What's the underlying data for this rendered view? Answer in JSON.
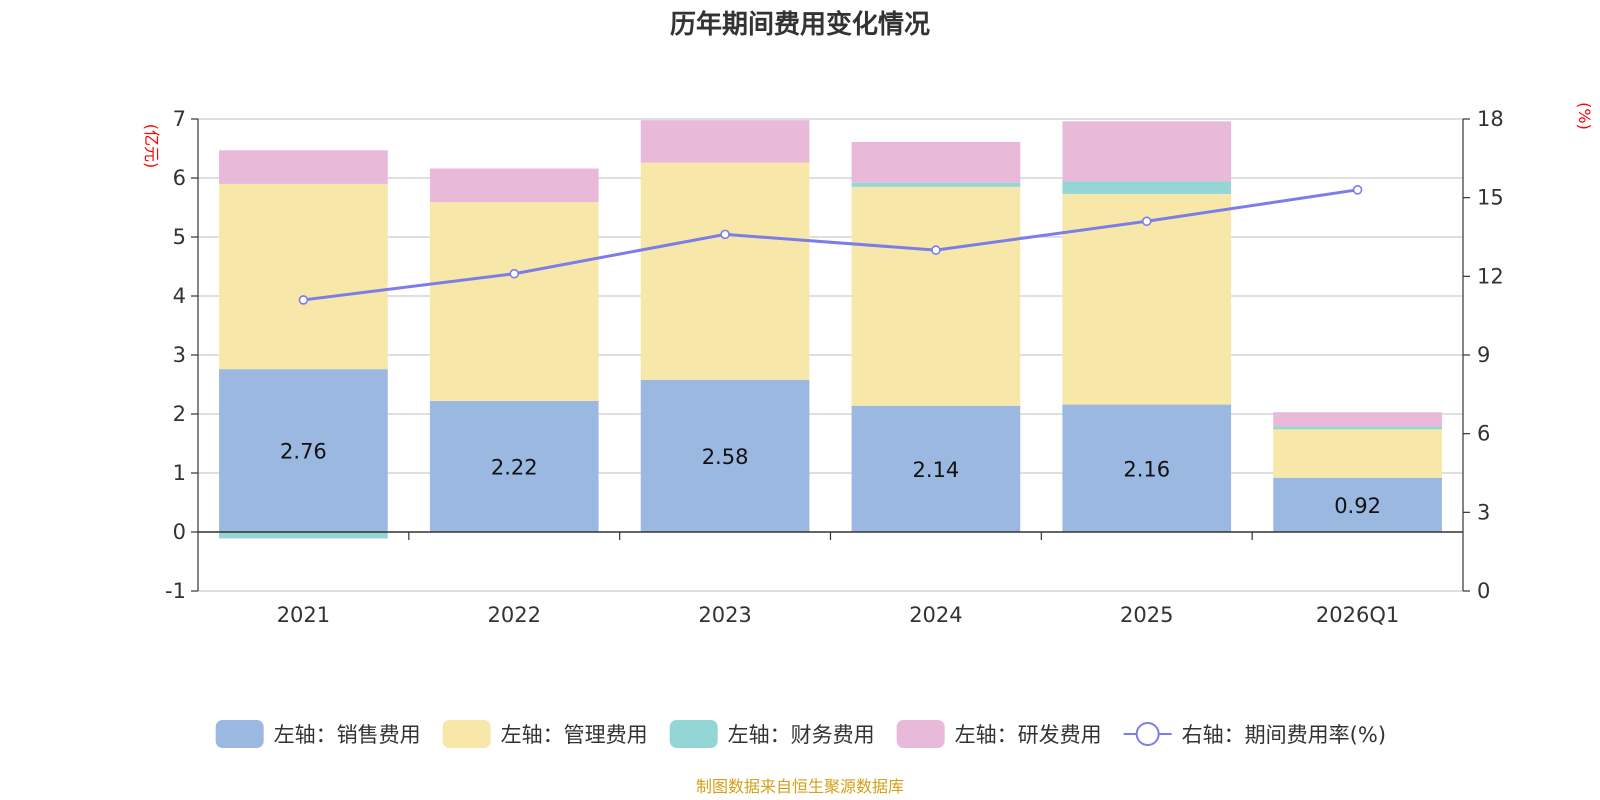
{
  "chart_data": {
    "type": "bar",
    "title": "历年期间费用变化情况",
    "categories": [
      "2021",
      "2022",
      "2023",
      "2024",
      "2025",
      "2026Q1"
    ],
    "left_axis": {
      "unit": "(亿元)",
      "ylim": [
        -1,
        7
      ],
      "ticks": [
        -1,
        0,
        1,
        2,
        3,
        4,
        5,
        6,
        7
      ]
    },
    "right_axis": {
      "unit": "(%)",
      "ylim": [
        0,
        18
      ],
      "ticks": [
        0,
        3,
        6,
        9,
        12,
        15,
        18
      ]
    },
    "series": [
      {
        "name": "左轴：销售费用",
        "type": "bar",
        "axis": "left",
        "color": "#9bb8e1",
        "values": [
          2.76,
          2.22,
          2.58,
          2.14,
          2.16,
          0.92
        ],
        "labels": [
          "2.76",
          "2.22",
          "2.58",
          "2.14",
          "2.16",
          "0.92"
        ]
      },
      {
        "name": "左轴：管理费用",
        "type": "bar",
        "axis": "left",
        "color": "#f7e7a8",
        "values": [
          3.14,
          3.37,
          3.68,
          3.71,
          3.57,
          0.82
        ]
      },
      {
        "name": "左轴：财务费用",
        "type": "bar",
        "axis": "left",
        "color": "#94d5d5",
        "values": [
          -0.11,
          0.0,
          0.0,
          0.07,
          0.21,
          0.05
        ]
      },
      {
        "name": "左轴：研发费用",
        "type": "bar",
        "axis": "left",
        "color": "#e8b9d9",
        "values": [
          0.57,
          0.57,
          0.72,
          0.69,
          1.02,
          0.24
        ]
      },
      {
        "name": "右轴：期间费用率(%)",
        "type": "line",
        "axis": "right",
        "color": "#7b7de8",
        "values": [
          11.1,
          12.1,
          13.6,
          13.0,
          14.1,
          15.3
        ]
      }
    ],
    "legend_position": "bottom",
    "grid": true
  },
  "footer": {
    "source": "制图数据来自恒生聚源数据库"
  }
}
